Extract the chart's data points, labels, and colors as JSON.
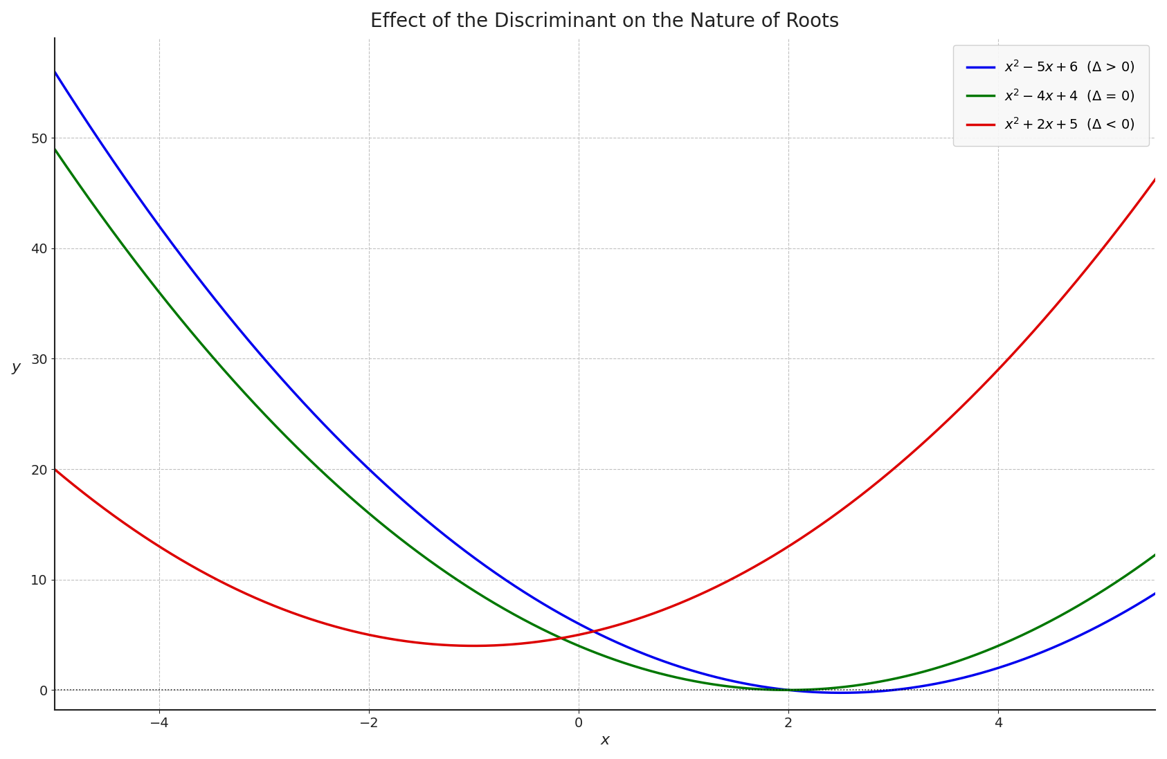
{
  "title": "Effect of the Discriminant on the Nature of Roots",
  "xlabel": "x",
  "ylabel": "y",
  "xlim": [
    -5.0,
    5.5
  ],
  "ylim": [
    -1.8,
    59
  ],
  "background_color": "#ffffff",
  "curves": [
    {
      "label": "$x^2 - 5x + 6$  (Δ > 0)",
      "color": "#0000ee",
      "coeffs": [
        1,
        -5,
        6
      ]
    },
    {
      "label": "$x^2 - 4x + 4$  (Δ = 0)",
      "color": "#007700",
      "coeffs": [
        1,
        -4,
        4
      ]
    },
    {
      "label": "$x^2 + 2x + 5$  (Δ < 0)",
      "color": "#dd0000",
      "coeffs": [
        1,
        2,
        5
      ]
    }
  ],
  "yticks": [
    0,
    10,
    20,
    30,
    40,
    50
  ],
  "xticks": [
    -4,
    -2,
    0,
    2,
    4
  ],
  "title_fontsize": 20,
  "axis_label_fontsize": 16,
  "tick_fontsize": 14,
  "legend_fontsize": 14,
  "line_width": 2.5
}
